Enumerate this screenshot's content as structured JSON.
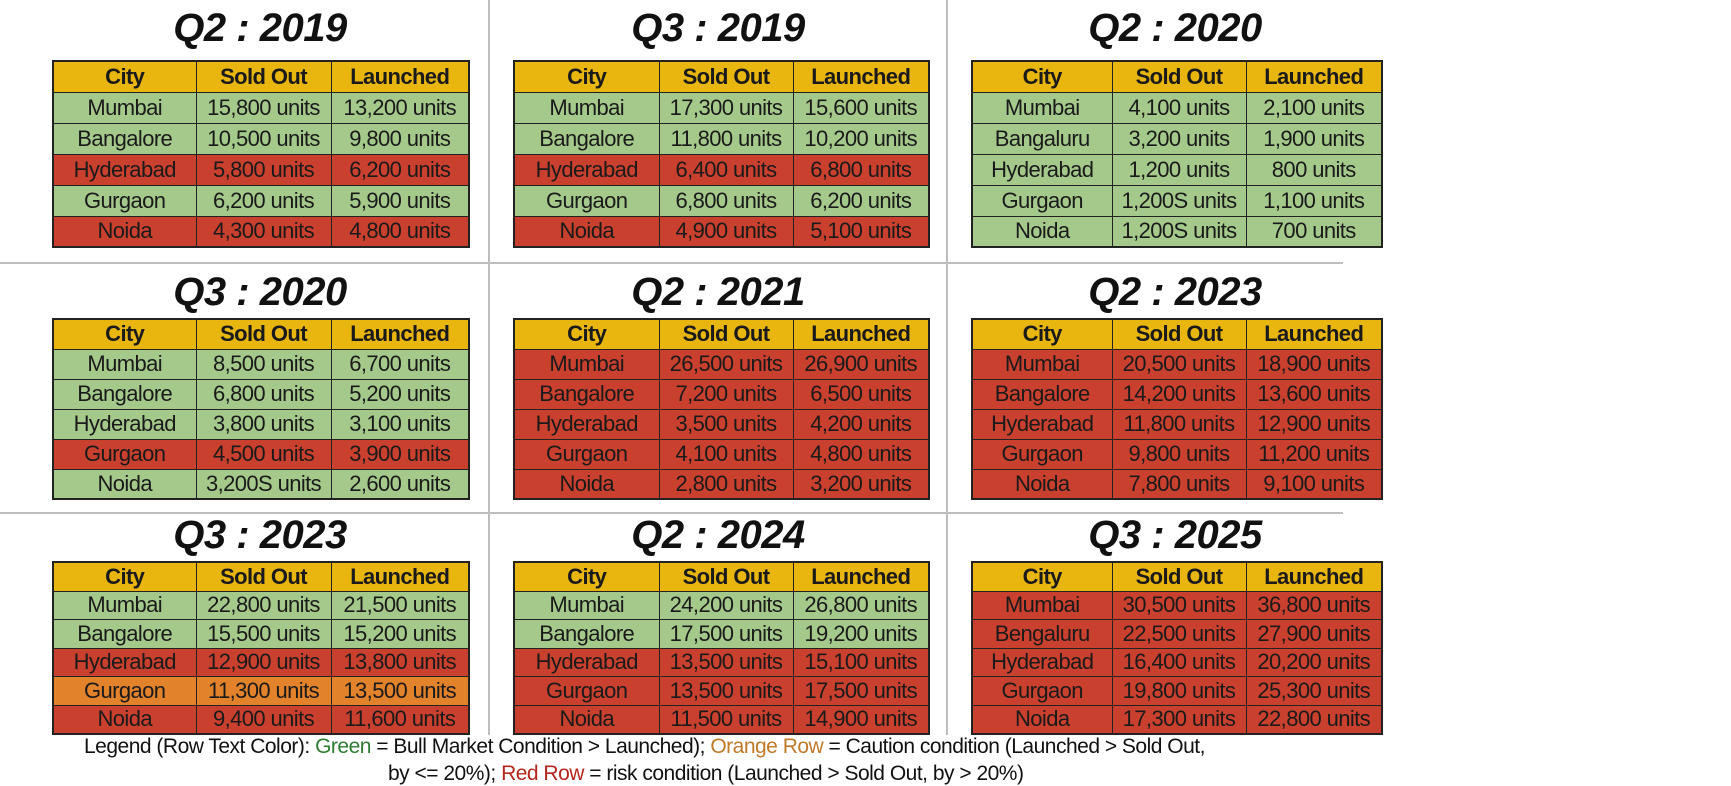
{
  "colors": {
    "header": "#e9b50f",
    "green": "#a4c98b",
    "red": "#c9402e",
    "orange": "#e2822a"
  },
  "headers": [
    "City",
    "Sold Out",
    "Launched"
  ],
  "panels": [
    {
      "title": "Q2 : 2019",
      "rows": [
        {
          "city": "Mumbai",
          "sold": "15,800 units",
          "launched": "13,200 units",
          "status": "green"
        },
        {
          "city": "Bangalore",
          "sold": "10,500 units",
          "launched": "9,800 units",
          "status": "green"
        },
        {
          "city": "Hyderabad",
          "sold": "5,800 units",
          "launched": "6,200 units",
          "status": "red"
        },
        {
          "city": "Gurgaon",
          "sold": "6,200 units",
          "launched": "5,900 units",
          "status": "green"
        },
        {
          "city": "Noida",
          "sold": "4,300 units",
          "launched": "4,800 units",
          "status": "red"
        }
      ]
    },
    {
      "title": "Q3 : 2019",
      "rows": [
        {
          "city": "Mumbai",
          "sold": "17,300 units",
          "launched": "15,600 units",
          "status": "green"
        },
        {
          "city": "Bangalore",
          "sold": "11,800 units",
          "launched": "10,200 units",
          "status": "green"
        },
        {
          "city": "Hyderabad",
          "sold": "6,400 units",
          "launched": "6,800 units",
          "status": "red"
        },
        {
          "city": "Gurgaon",
          "sold": "6,800 units",
          "launched": "6,200 units",
          "status": "green"
        },
        {
          "city": "Noida",
          "sold": "4,900 units",
          "launched": "5,100 units",
          "status": "red"
        }
      ]
    },
    {
      "title": "Q2 : 2020",
      "rows": [
        {
          "city": "Mumbai",
          "sold": "4,100 units",
          "launched": "2,100 units",
          "status": "green"
        },
        {
          "city": "Bangaluru",
          "sold": "3,200 units",
          "launched": "1,900 units",
          "status": "green"
        },
        {
          "city": "Hyderabad",
          "sold": "1,200 units",
          "launched": "800 units",
          "status": "green"
        },
        {
          "city": "Gurgaon",
          "sold": "1,200S units",
          "launched": "1,100 units",
          "status": "green"
        },
        {
          "city": "Noida",
          "sold": "1,200S units",
          "launched": "700 units",
          "status": "green"
        }
      ]
    },
    {
      "title": "Q3 : 2020",
      "rows": [
        {
          "city": "Mumbai",
          "sold": "8,500 units",
          "launched": "6,700 units",
          "status": "green"
        },
        {
          "city": "Bangalore",
          "sold": "6,800 units",
          "launched": "5,200 units",
          "status": "green"
        },
        {
          "city": "Hyderabad",
          "sold": "3,800 units",
          "launched": "3,100 units",
          "status": "green"
        },
        {
          "city": "Gurgaon",
          "sold": "4,500 units",
          "launched": "3,900 units",
          "status": "red"
        },
        {
          "city": "Noida",
          "sold": "3,200S units",
          "launched": "2,600 units",
          "status": "green"
        }
      ]
    },
    {
      "title": "Q2 : 2021",
      "rows": [
        {
          "city": "Mumbai",
          "sold": "26,500 units",
          "launched": "26,900 units",
          "status": "red"
        },
        {
          "city": "Bangalore",
          "sold": "7,200 units",
          "launched": "6,500 units",
          "status": "red"
        },
        {
          "city": "Hyderabad",
          "sold": "3,500 units",
          "launched": "4,200 units",
          "status": "red"
        },
        {
          "city": "Gurgaon",
          "sold": "4,100 units",
          "launched": "4,800 units",
          "status": "red"
        },
        {
          "city": "Noida",
          "sold": "2,800 units",
          "launched": "3,200 units",
          "status": "red"
        }
      ]
    },
    {
      "title": "Q2 : 2023",
      "rows": [
        {
          "city": "Mumbai",
          "sold": "20,500 units",
          "launched": "18,900 units",
          "status": "red"
        },
        {
          "city": "Bangalore",
          "sold": "14,200 units",
          "launched": "13,600 units",
          "status": "red"
        },
        {
          "city": "Hyderabad",
          "sold": "11,800 units",
          "launched": "12,900 units",
          "status": "red"
        },
        {
          "city": "Gurgaon",
          "sold": "9,800 units",
          "launched": "11,200 units",
          "status": "red"
        },
        {
          "city": "Noida",
          "sold": "7,800 units",
          "launched": "9,100 units",
          "status": "red"
        }
      ]
    },
    {
      "title": "Q3 : 2023",
      "rows": [
        {
          "city": "Mumbai",
          "sold": "22,800 units",
          "launched": "21,500 units",
          "status": "green"
        },
        {
          "city": "Bangalore",
          "sold": "15,500 units",
          "launched": "15,200 units",
          "status": "green"
        },
        {
          "city": "Hyderabad",
          "sold": "12,900 units",
          "launched": "13,800 units",
          "status": "red"
        },
        {
          "city": "Gurgaon",
          "sold": "11,300 units",
          "launched": "13,500 units",
          "status": "orange"
        },
        {
          "city": "Noida",
          "sold": "9,400 units",
          "launched": "11,600 units",
          "status": "red"
        }
      ]
    },
    {
      "title": "Q2 : 2024",
      "rows": [
        {
          "city": "Mumbai",
          "sold": "24,200 units",
          "launched": "26,800 units",
          "status": "green"
        },
        {
          "city": "Bangalore",
          "sold": "17,500 units",
          "launched": "19,200 units",
          "status": "green"
        },
        {
          "city": "Hyderabad",
          "sold": "13,500 units",
          "launched": "15,100 units",
          "status": "red"
        },
        {
          "city": "Gurgaon",
          "sold": "13,500 units",
          "launched": "17,500 units",
          "status": "red"
        },
        {
          "city": "Noida",
          "sold": "11,500 units",
          "launched": "14,900 units",
          "status": "red"
        }
      ]
    },
    {
      "title": "Q3 : 2025",
      "rows": [
        {
          "city": "Mumbai",
          "sold": "30,500 units",
          "launched": "36,800 units",
          "status": "red"
        },
        {
          "city": "Bengaluru",
          "sold": "22,500 units",
          "launched": "27,900 units",
          "status": "red"
        },
        {
          "city": "Hyderabad",
          "sold": "16,400 units",
          "launched": "20,200 units",
          "status": "red"
        },
        {
          "city": "Gurgaon",
          "sold": "19,800 units",
          "launched": "25,300 units",
          "status": "red"
        },
        {
          "city": "Noida",
          "sold": "17,300 units",
          "launched": "22,800 units",
          "status": "red"
        }
      ]
    }
  ],
  "legend": {
    "prefix": "Legend (Row Text Color): ",
    "green_label": "Green",
    "green_text": " = Bull Market Condition > Launched); ",
    "orange_label": "Orange Row",
    "orange_text": " = Caution condition (Launched > Sold Out,",
    "line2_prefix": "by <= 20%); ",
    "red_label": "Red Row",
    "red_text": " = risk condition (Launched > Sold Out, by > 20%)"
  }
}
